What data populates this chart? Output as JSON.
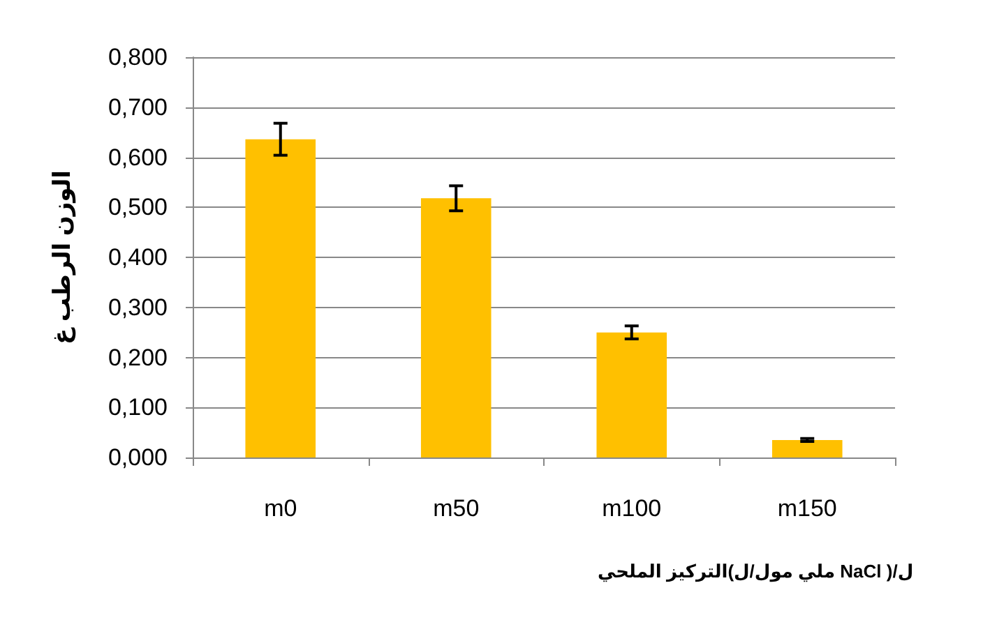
{
  "chart_data": {
    "type": "bar",
    "xlabel": "التركيز الملحي(ملي مول/ل NaCl )/ل",
    "ylabel": "الوزن الرطب غ",
    "categories": [
      "m0",
      "m50",
      "m100",
      "m150"
    ],
    "values": [
      0.636,
      0.518,
      0.25,
      0.035
    ],
    "errors": [
      0.032,
      0.025,
      0.013,
      0.003
    ],
    "color": "#ffc000",
    "ylim": [
      0,
      0.8
    ],
    "yticks": [
      {
        "value": 0,
        "label": "0,000"
      },
      {
        "value": 0.1,
        "label": "0,100"
      },
      {
        "value": 0.2,
        "label": "0,200"
      },
      {
        "value": 0.3,
        "label": "0,300"
      },
      {
        "value": 0.4,
        "label": "0,400"
      },
      {
        "value": 0.5,
        "label": "0,500"
      },
      {
        "value": 0.6,
        "label": "0,600"
      },
      {
        "value": 0.7,
        "label": "0,700"
      },
      {
        "value": 0.8,
        "label": "0,800"
      }
    ],
    "grid": "y"
  }
}
